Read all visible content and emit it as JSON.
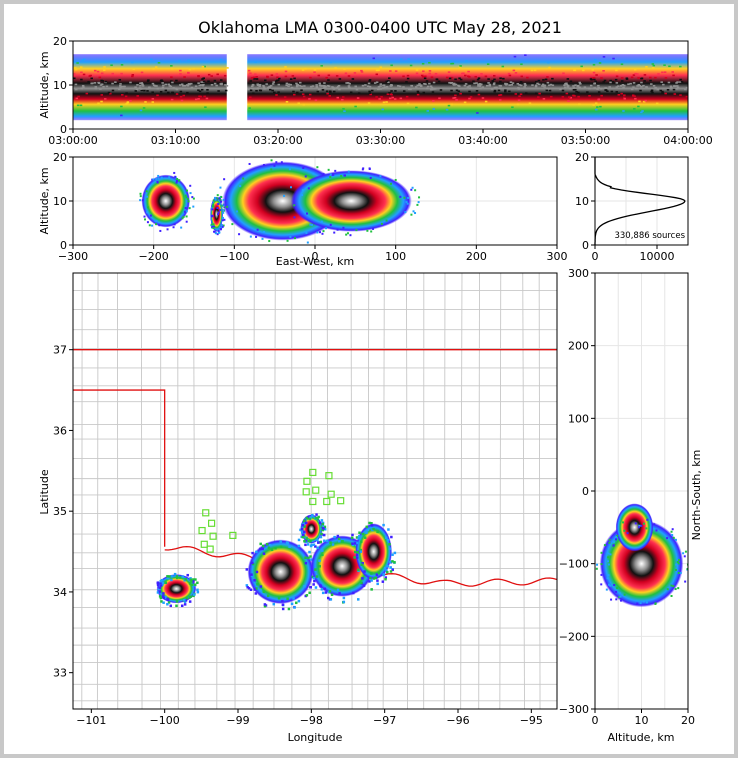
{
  "title": "Oklahoma LMA 0300-0400 UTC May 28, 2021",
  "chart_data": [
    {
      "type": "heatmap",
      "id": "time_altitude",
      "ylabel": "Altitude, km",
      "ylim": [
        0,
        20
      ],
      "yticks": [
        "0",
        "10",
        "20"
      ],
      "xticks": [
        "03:00:00",
        "03:10:00",
        "03:20:00",
        "03:30:00",
        "03:40:00",
        "03:50:00",
        "04:00:00"
      ],
      "x_range_minutes": [
        0,
        60
      ],
      "data_gap_minutes": [
        15,
        17
      ],
      "core_altitude_km": 10
    },
    {
      "type": "heatmap",
      "id": "eastwest_altitude",
      "xlabel": "East-West, km",
      "ylabel": "Altitude, km",
      "xlim": [
        -300,
        300
      ],
      "ylim": [
        0,
        20
      ],
      "xticks": [
        "−300",
        "−200",
        "−100",
        "0",
        "100",
        "200",
        "300"
      ],
      "yticks": [
        "0",
        "10",
        "20"
      ],
      "clusters_km": [
        {
          "x": -185,
          "z": 10,
          "w": 30,
          "h": 6
        },
        {
          "x": -122,
          "z": 7,
          "w": 8,
          "h": 4
        },
        {
          "x": -40,
          "z": 10,
          "w": 75,
          "h": 9
        },
        {
          "x": 45,
          "z": 10,
          "w": 75,
          "h": 7
        }
      ]
    },
    {
      "type": "line",
      "id": "altitude_histogram",
      "xlim": [
        0,
        15000
      ],
      "ylim": [
        0,
        20
      ],
      "xticks": [
        "0",
        "10000"
      ],
      "yticks": [
        "0",
        "10",
        "20"
      ],
      "annotation": "330,886 sources",
      "peak": {
        "altitude_km": 10,
        "count": 14500
      }
    },
    {
      "type": "heatmap",
      "id": "plan_view",
      "xlabel": "Longitude",
      "ylabel": "Latitude",
      "xlim": [
        -101.25,
        -94.65
      ],
      "ylim": [
        32.55,
        37.95
      ],
      "xticks": [
        "−101",
        "−100",
        "−99",
        "−98",
        "−97",
        "−96",
        "−95"
      ],
      "yticks": [
        "33",
        "34",
        "35",
        "36",
        "37"
      ],
      "state_line_color": "#e01010",
      "county_line_color": "#c8c8c8",
      "station_color": "#66dd33",
      "stations": [
        [
          -97.98,
          35.48
        ],
        [
          -97.76,
          35.44
        ],
        [
          -98.06,
          35.37
        ],
        [
          -97.94,
          35.26
        ],
        [
          -98.07,
          35.24
        ],
        [
          -97.73,
          35.21
        ],
        [
          -97.6,
          35.13
        ],
        [
          -97.98,
          35.12
        ],
        [
          -97.79,
          35.12
        ],
        [
          -99.44,
          34.98
        ],
        [
          -99.36,
          34.85
        ],
        [
          -99.49,
          34.76
        ],
        [
          -99.34,
          34.69
        ],
        [
          -99.07,
          34.7
        ],
        [
          -99.46,
          34.59
        ],
        [
          -99.38,
          34.53
        ]
      ],
      "storms": [
        {
          "lon": -99.84,
          "lat": 34.04,
          "rx": 0.27,
          "ry": 0.18
        },
        {
          "lon": -98.42,
          "lat": 34.25,
          "rx": 0.45,
          "ry": 0.4
        },
        {
          "lon": -97.58,
          "lat": 34.32,
          "rx": 0.43,
          "ry": 0.38
        },
        {
          "lon": -97.15,
          "lat": 34.5,
          "rx": 0.25,
          "ry": 0.35
        },
        {
          "lon": -98.0,
          "lat": 34.78,
          "rx": 0.15,
          "ry": 0.18
        }
      ]
    },
    {
      "type": "heatmap",
      "id": "altitude_northsouth",
      "xlabel": "Altitude, km",
      "ylabel": "North-South, km",
      "xlim": [
        0,
        20
      ],
      "ylim": [
        -300,
        300
      ],
      "xticks": [
        "0",
        "10",
        "20"
      ],
      "yticks": [
        "−300",
        "−200",
        "−100",
        "0",
        "100",
        "200",
        "300"
      ],
      "core": {
        "altitude_km": 10,
        "ns_km": -90,
        "w_km": 9,
        "h_km": 60
      }
    }
  ]
}
